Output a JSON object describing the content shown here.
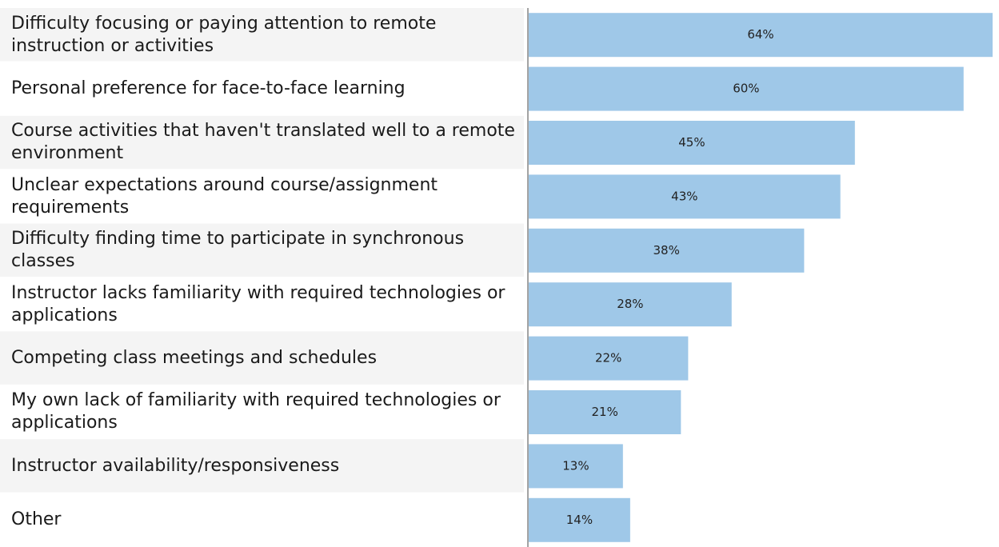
{
  "chart_data": {
    "type": "bar",
    "orientation": "horizontal",
    "categories": [
      "Difficulty focusing or paying attention to remote instruction or activities",
      "Personal preference for face-to-face learning",
      "Course activities that haven't translated well to a remote environment",
      "Unclear expectations around course/assignment requirements",
      "Difficulty finding time to participate in synchronous classes",
      "Instructor lacks familiarity with required technologies or applications",
      "Competing class meetings and schedules",
      "My own lack of familiarity with required technologies or applications",
      "Instructor availability/responsiveness",
      "Other"
    ],
    "values": [
      64,
      60,
      45,
      43,
      38,
      28,
      22,
      21,
      13,
      14
    ],
    "value_labels": [
      "64%",
      "60%",
      "45%",
      "43%",
      "38%",
      "28%",
      "22%",
      "21%",
      "13%",
      "14%"
    ],
    "color": "#9fc8e8"
  }
}
